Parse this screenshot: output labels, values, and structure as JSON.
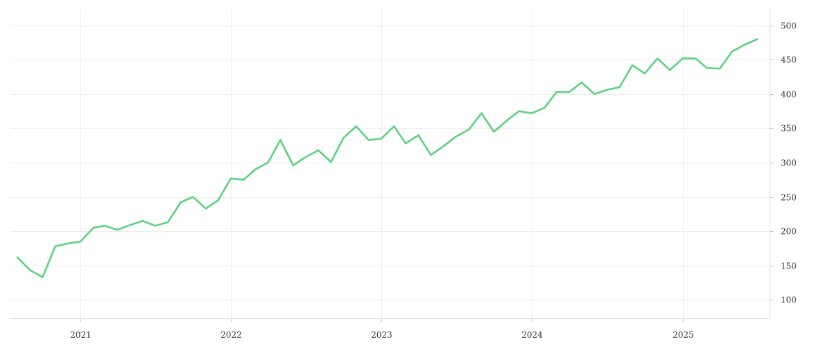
{
  "chart_data": {
    "type": "line",
    "title": "",
    "xlabel": "",
    "ylabel": "",
    "x_axis": {
      "type": "date",
      "range": [
        "2020-07-15",
        "2025-07-31"
      ],
      "ticks": [
        "2021-01-01",
        "2022-01-01",
        "2023-01-01",
        "2024-01-01",
        "2025-01-01"
      ],
      "tick_labels": [
        "2021",
        "2022",
        "2023",
        "2024",
        "2025"
      ]
    },
    "y_axis": {
      "range": [
        73,
        525
      ],
      "ticks": [
        100,
        150,
        200,
        250,
        300,
        350,
        400,
        450,
        500
      ],
      "tick_labels": [
        "100",
        "150",
        "200",
        "250",
        "300",
        "350",
        "400",
        "450",
        "500"
      ],
      "position": "right"
    },
    "grid": true,
    "legend": "none",
    "colors": {
      "line": "#5cd17f",
      "grid": "#ececec",
      "text": "#333333"
    },
    "series": [
      {
        "x": [
          "2020-08-01",
          "2020-09-01",
          "2020-10-01",
          "2020-11-01",
          "2020-12-01",
          "2021-01-01",
          "2021-02-01",
          "2021-03-01",
          "2021-04-01",
          "2021-05-01",
          "2021-06-01",
          "2021-07-01",
          "2021-08-01",
          "2021-09-01",
          "2021-10-01",
          "2021-11-01",
          "2021-12-01",
          "2022-01-01",
          "2022-02-01",
          "2022-03-01",
          "2022-04-01",
          "2022-05-01",
          "2022-06-01",
          "2022-07-01",
          "2022-08-01",
          "2022-09-01",
          "2022-10-01",
          "2022-11-01",
          "2022-12-01",
          "2023-01-01",
          "2023-02-01",
          "2023-03-01",
          "2023-04-01",
          "2023-05-01",
          "2023-06-01",
          "2023-07-01",
          "2023-08-01",
          "2023-09-01",
          "2023-10-01",
          "2023-11-01",
          "2023-12-01",
          "2024-01-01",
          "2024-02-01",
          "2024-03-01",
          "2024-04-01",
          "2024-05-01",
          "2024-06-01",
          "2024-07-01",
          "2024-08-01",
          "2024-09-01",
          "2024-10-01",
          "2024-11-01",
          "2024-12-01",
          "2025-01-01",
          "2025-02-01",
          "2025-03-01",
          "2025-04-01",
          "2025-05-01",
          "2025-06-01",
          "2025-07-01"
        ],
        "values": [
          162,
          143,
          133,
          178,
          182,
          185,
          205,
          208,
          202,
          209,
          215,
          208,
          213,
          242,
          250,
          233,
          245,
          277,
          275,
          290,
          300,
          333,
          296,
          308,
          318,
          301,
          336,
          353,
          333,
          335,
          353,
          328,
          340,
          311,
          324,
          338,
          348,
          372,
          345,
          361,
          375,
          372,
          380,
          403,
          403,
          417,
          400,
          406,
          410,
          442,
          430,
          452,
          435,
          452,
          452,
          438,
          437,
          462,
          472,
          480
        ]
      }
    ]
  }
}
